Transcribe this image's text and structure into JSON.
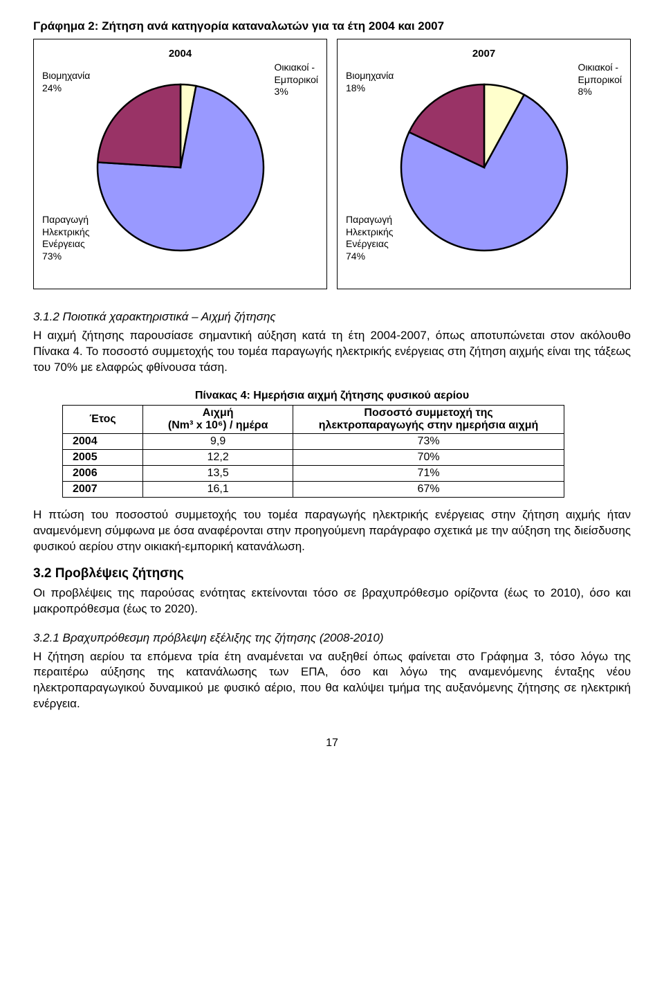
{
  "chart_title": "Γράφημα 2: Ζήτηση ανά κατηγορία καταναλωτών για τα έτη 2004 και 2007",
  "charts": {
    "left": {
      "year": "2004",
      "colors": {
        "industry": "#993366",
        "residential": "#ffffcc",
        "power": "#9999ff"
      },
      "labels": {
        "industry": "Βιομηχανία\n24%",
        "residential": "Οικιακοί -\nΕμπορικοί\n3%",
        "power": "Παραγωγή\nΗλεκτρικής\nΕνέργειας\n73%"
      },
      "shares": {
        "industry": 24,
        "residential": 3,
        "power": 73
      }
    },
    "right": {
      "year": "2007",
      "colors": {
        "industry": "#993366",
        "residential": "#ffffcc",
        "power": "#9999ff"
      },
      "labels": {
        "industry": "Βιομηχανία\n18%",
        "residential": "Οικιακοί -\nΕμπορικοί\n8%",
        "power": "Παραγωγή\nΗλεκτρικής\nΕνέργειας\n74%"
      },
      "shares": {
        "industry": 18,
        "residential": 8,
        "power": 74
      }
    }
  },
  "section312_heading": "3.1.2  Ποιοτικά χαρακτηριστικά – Αιχμή ζήτησης",
  "para1": "Η αιχμή ζήτησης παρουσίασε σημαντική αύξηση κατά τη έτη 2004-2007, όπως αποτυπώνεται στον ακόλουθο Πίνακα 4. Το ποσοστό συμμετοχής του τομέα παραγωγής ηλεκτρικής ενέργειας στη ζήτηση αιχμής είναι της τάξεως του 70% με ελαφρώς φθίνουσα τάση.",
  "table4": {
    "caption": "Πίνακας 4: Ημερήσια αιχμή ζήτησης φυσικού αερίου",
    "columns": [
      "Έτος",
      "Αιχμή\n(Nm³ x 10⁶) / ημέρα",
      "Ποσοστό συμμετοχή της\nηλεκτροπαραγωγής στην ημερήσια αιχμή"
    ],
    "col_header_year": "Έτος",
    "col_header_peak_l1": "Αιχμή",
    "col_header_peak_l2": "(Nm³ x 10⁶) / ημέρα",
    "col_header_share_l1": "Ποσοστό συμμετοχή της",
    "col_header_share_l2": "ηλεκτροπαραγωγής στην ημερήσια αιχμή",
    "rows": [
      {
        "year": "2004",
        "peak": "9,9",
        "share": "73%"
      },
      {
        "year": "2005",
        "peak": "12,2",
        "share": "70%"
      },
      {
        "year": "2006",
        "peak": "13,5",
        "share": "71%"
      },
      {
        "year": "2007",
        "peak": "16,1",
        "share": "67%"
      }
    ]
  },
  "para2": "Η πτώση του ποσοστού συμμετοχής του τομέα παραγωγής ηλεκτρικής ενέργειας στην ζήτηση αιχμής ήταν αναμενόμενη σύμφωνα με όσα αναφέρονται στην προηγούμενη παράγραφο σχετικά με την αύξηση της διείσδυσης φυσικού αερίου στην οικιακή-εμπορική κατανάλωση.",
  "section32_heading": "3.2  Προβλέψεις ζήτησης",
  "para3": "Οι προβλέψεις της παρούσας ενότητας εκτείνονται τόσο σε βραχυπρόθεσμο ορίζοντα (έως το 2010), όσο και μακροπρόθεσμα (έως το 2020).",
  "section321_heading": "3.2.1  Βραχυπρόθεσμη πρόβλεψη εξέλιξης της ζήτησης (2008-2010)",
  "para4": "Η ζήτηση αερίου τα επόμενα τρία έτη αναμένεται να αυξηθεί όπως φαίνεται στο Γράφημα 3, τόσο λόγω της περαιτέρω αύξησης της κατανάλωσης των ΕΠΑ, όσο και λόγω της αναμενόμενης ένταξης νέου ηλεκτροπαραγωγικού δυναμικού με φυσικό αέριο, που θα καλύψει τμήμα της αυξανόμενης ζήτησης σε ηλεκτρική ενέργεια.",
  "page_number": "17"
}
